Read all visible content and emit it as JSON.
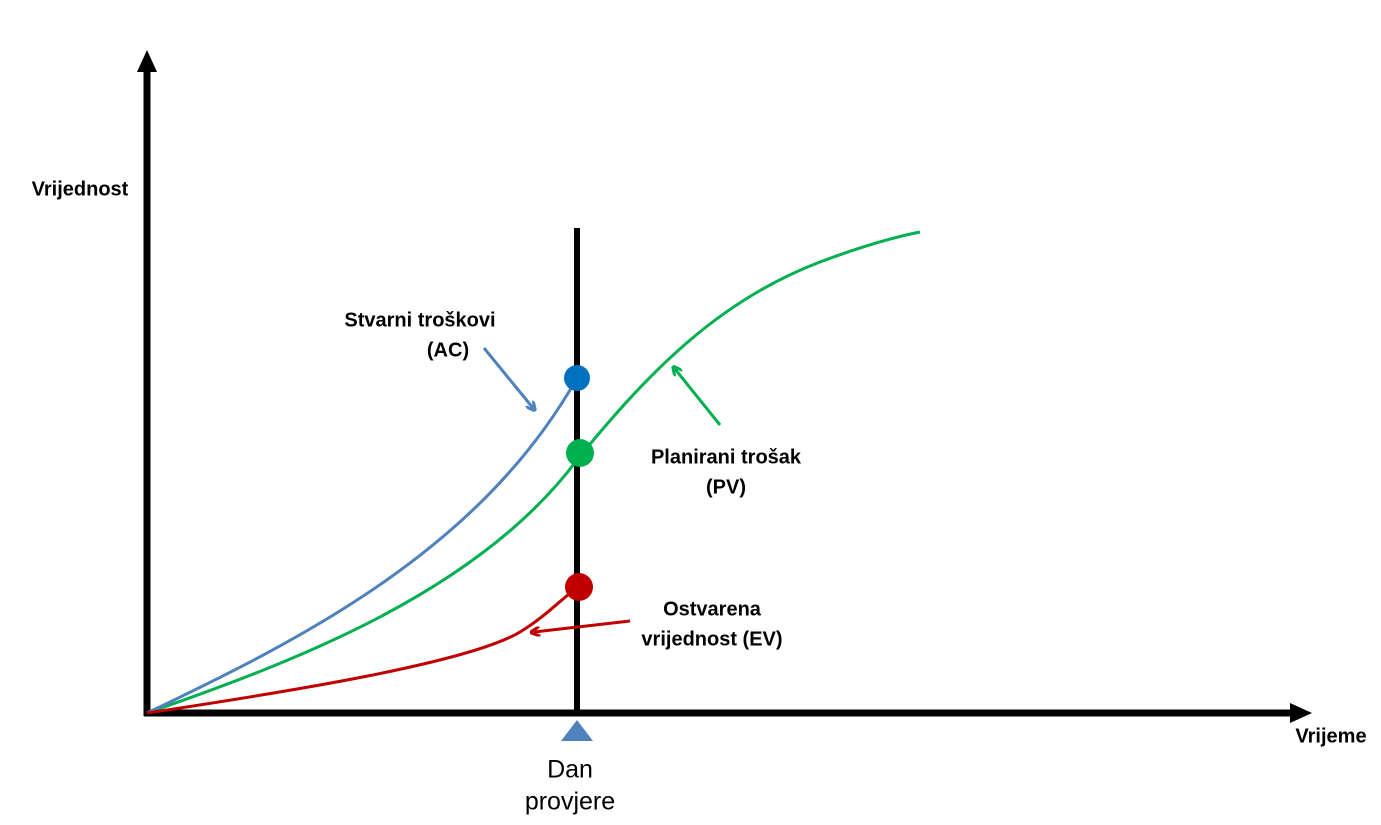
{
  "axes": {
    "y_label": "Vrijednost",
    "x_label": "Vrijeme"
  },
  "status_date": {
    "lines": [
      "Dan",
      "provjere"
    ]
  },
  "curves": [
    {
      "lines": [
        "Stvarni troškovi",
        "(AC)"
      ]
    },
    {
      "lines": [
        "Planirani trošak",
        "(PV)"
      ]
    },
    {
      "lines": [
        "Ostvarena",
        "vrijednost (EV)"
      ]
    }
  ]
}
